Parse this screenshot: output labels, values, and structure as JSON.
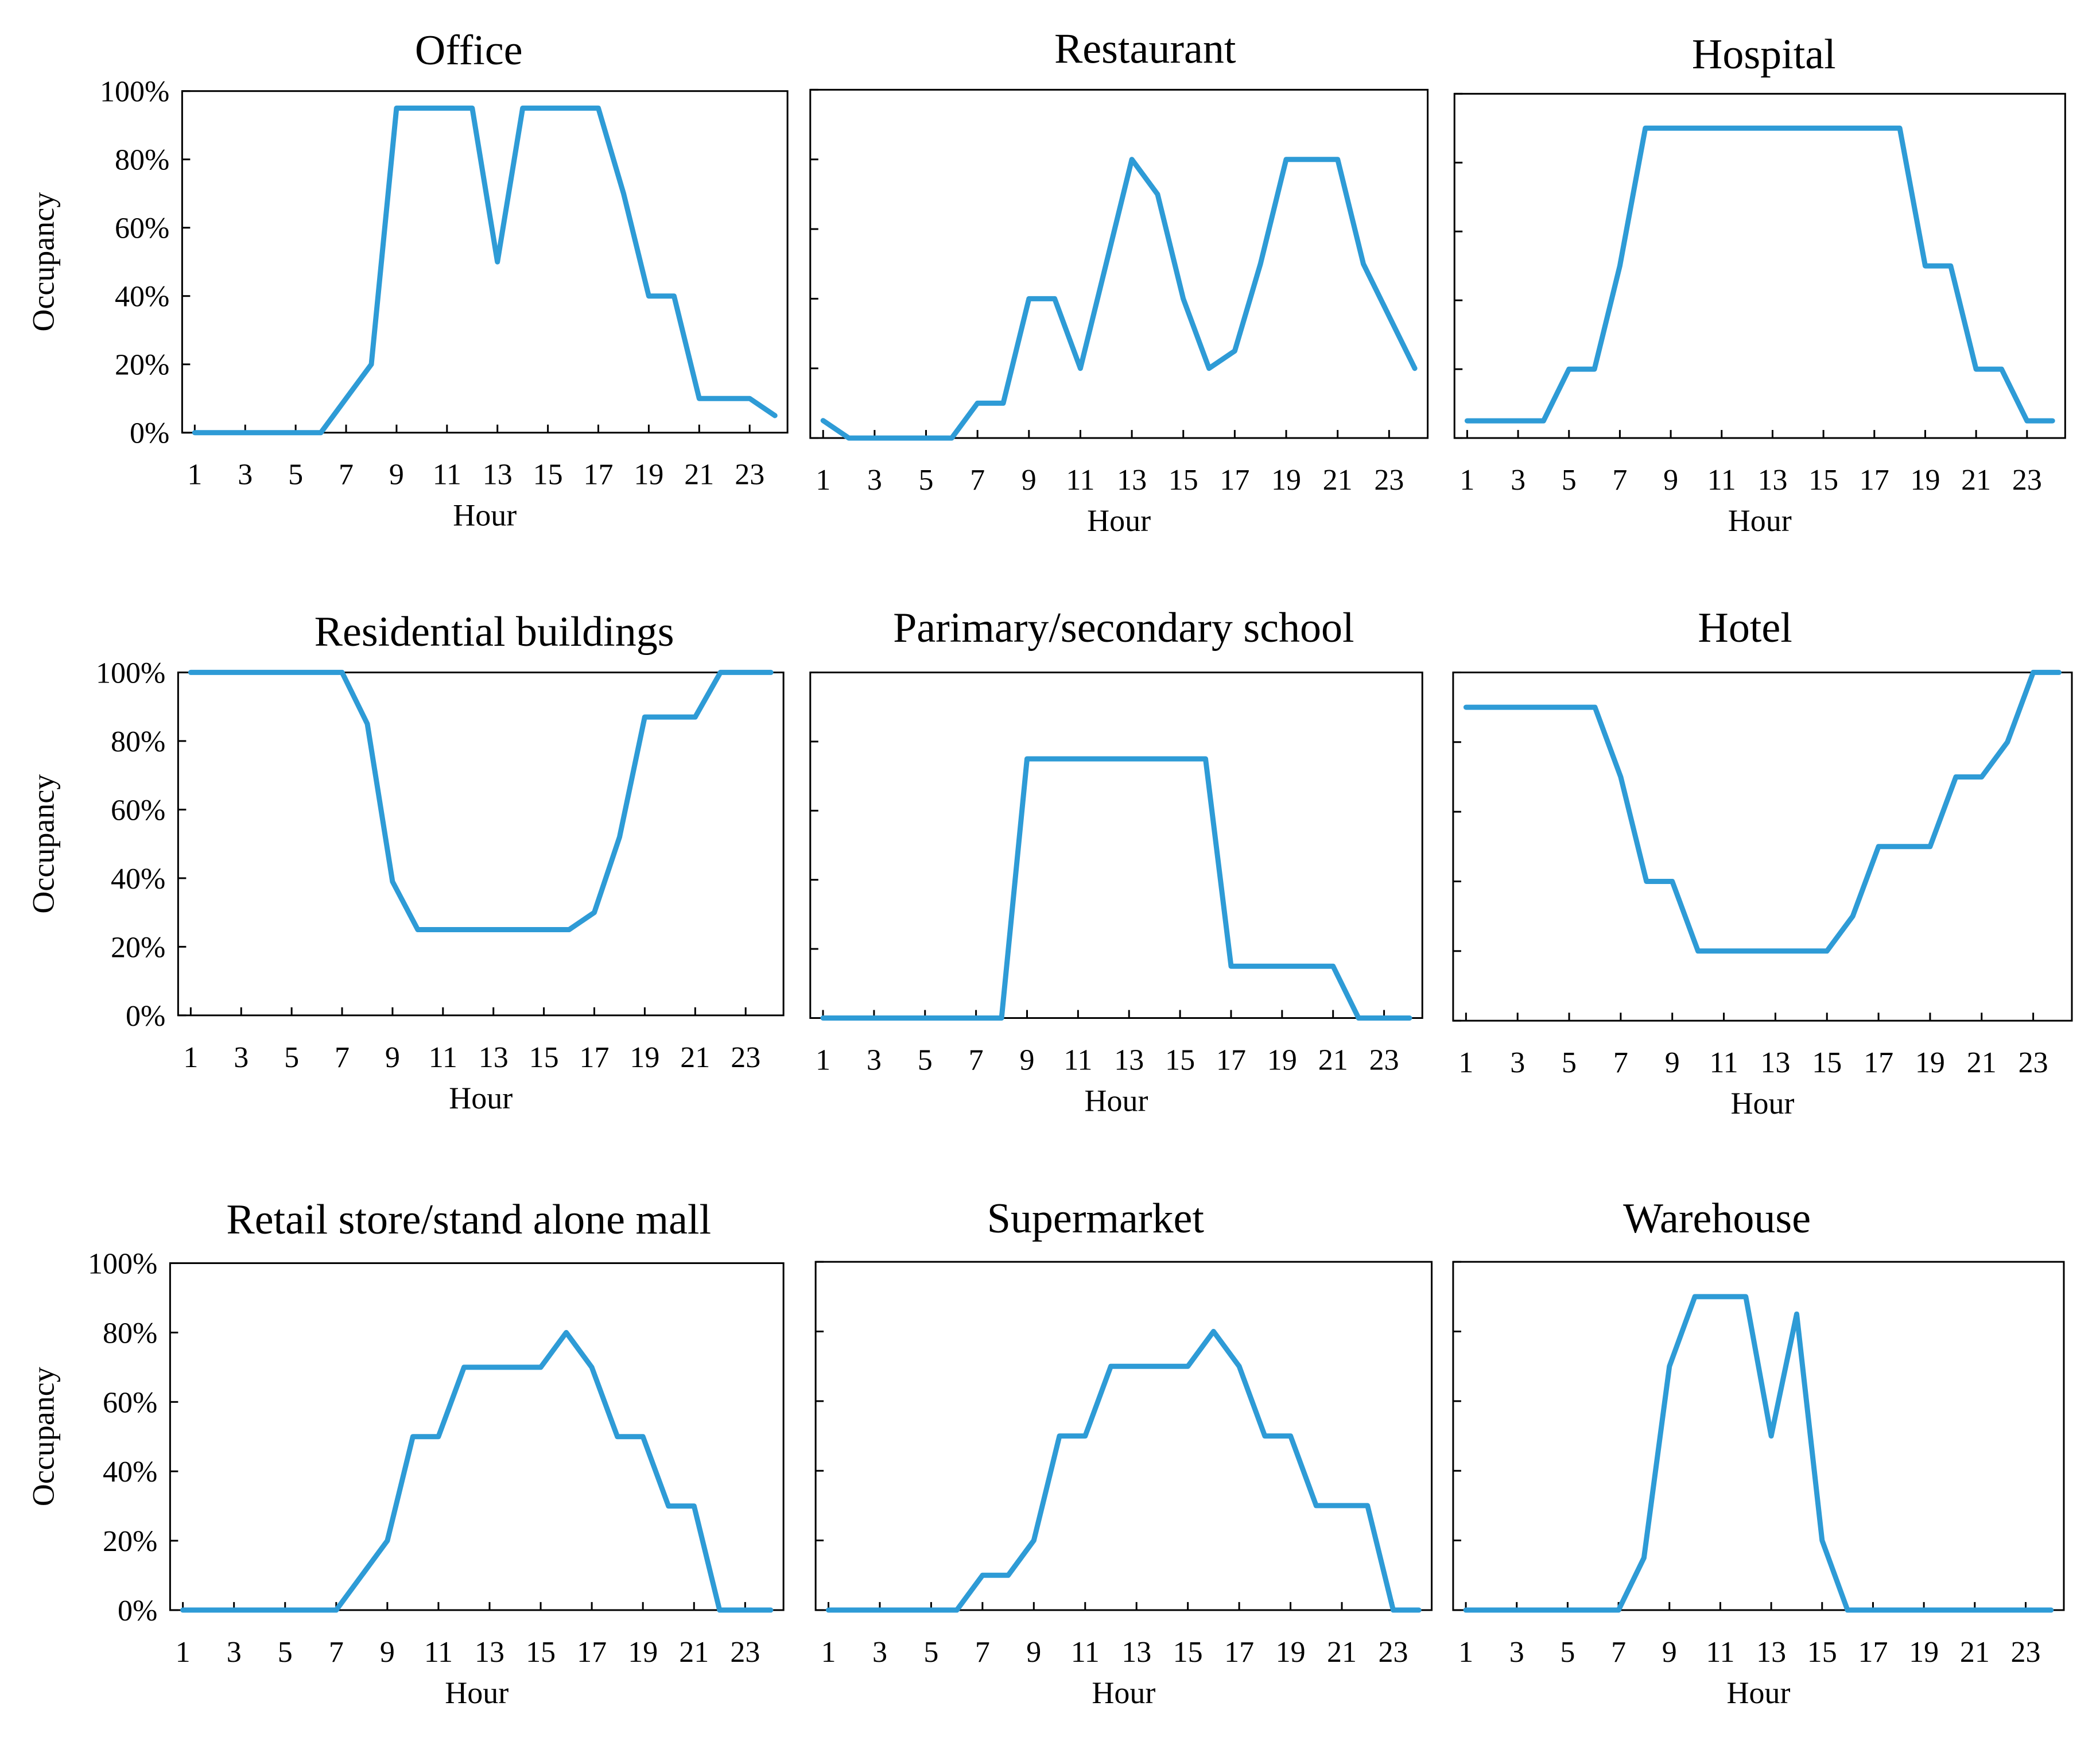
{
  "chart_data": [
    {
      "type": "line",
      "title": "Office",
      "xlabel": "Hour",
      "ylabel": "Occupancy",
      "xlim": [
        1,
        24
      ],
      "ylim": [
        0,
        100
      ],
      "x": [
        1,
        2,
        3,
        4,
        5,
        6,
        7,
        8,
        9,
        10,
        11,
        12,
        13,
        14,
        15,
        16,
        17,
        18,
        19,
        20,
        21,
        22,
        23,
        24
      ],
      "values": [
        0,
        0,
        0,
        0,
        0,
        0,
        10,
        20,
        95,
        95,
        95,
        95,
        50,
        95,
        95,
        95,
        95,
        70,
        40,
        40,
        10,
        10,
        10,
        5
      ]
    },
    {
      "type": "line",
      "title": "Restaurant",
      "xlabel": "Hour",
      "ylabel": "",
      "xlim": [
        1,
        24
      ],
      "ylim": [
        0,
        100
      ],
      "x": [
        1,
        2,
        3,
        4,
        5,
        6,
        7,
        8,
        9,
        10,
        11,
        12,
        13,
        14,
        15,
        16,
        17,
        18,
        19,
        20,
        21,
        22,
        23,
        24
      ],
      "values": [
        5,
        0,
        0,
        0,
        0,
        0,
        10,
        10,
        40,
        40,
        20,
        50,
        80,
        70,
        40,
        20,
        25,
        50,
        80,
        80,
        80,
        50,
        35,
        20
      ]
    },
    {
      "type": "line",
      "title": "Hospital",
      "xlabel": "Hour",
      "ylabel": "",
      "xlim": [
        1,
        24
      ],
      "ylim": [
        0,
        100
      ],
      "x": [
        1,
        2,
        3,
        4,
        5,
        6,
        7,
        8,
        9,
        10,
        11,
        12,
        13,
        14,
        15,
        16,
        17,
        18,
        19,
        20,
        21,
        22,
        23,
        24
      ],
      "values": [
        5,
        5,
        5,
        5,
        20,
        20,
        50,
        90,
        90,
        90,
        90,
        90,
        90,
        90,
        90,
        90,
        90,
        90,
        50,
        50,
        20,
        20,
        5,
        5
      ]
    },
    {
      "type": "line",
      "title": "Residential buildings",
      "xlabel": "Hour",
      "ylabel": "Occupancy",
      "xlim": [
        1,
        24
      ],
      "ylim": [
        0,
        100
      ],
      "x": [
        1,
        2,
        3,
        4,
        5,
        6,
        7,
        8,
        9,
        10,
        11,
        12,
        13,
        14,
        15,
        16,
        17,
        18,
        19,
        20,
        21,
        22,
        23,
        24
      ],
      "values": [
        100,
        100,
        100,
        100,
        100,
        100,
        100,
        85,
        39,
        25,
        25,
        25,
        25,
        25,
        25,
        25,
        30,
        52,
        87,
        87,
        87,
        100,
        100,
        100
      ]
    },
    {
      "type": "line",
      "title": "Parimary/secondary school",
      "xlabel": "Hour",
      "ylabel": "",
      "xlim": [
        1,
        24
      ],
      "ylim": [
        0,
        100
      ],
      "x": [
        1,
        2,
        3,
        4,
        5,
        6,
        7,
        8,
        9,
        10,
        11,
        12,
        13,
        14,
        15,
        16,
        17,
        18,
        19,
        20,
        21,
        22,
        23,
        24
      ],
      "values": [
        0,
        0,
        0,
        0,
        0,
        0,
        0,
        0,
        75,
        75,
        75,
        75,
        75,
        75,
        75,
        75,
        15,
        15,
        15,
        15,
        15,
        0,
        0,
        0
      ]
    },
    {
      "type": "line",
      "title": "Hotel",
      "xlabel": "Hour",
      "ylabel": "",
      "xlim": [
        1,
        24
      ],
      "ylim": [
        0,
        100
      ],
      "x": [
        1,
        2,
        3,
        4,
        5,
        6,
        7,
        8,
        9,
        10,
        11,
        12,
        13,
        14,
        15,
        16,
        17,
        18,
        19,
        20,
        21,
        22,
        23,
        24
      ],
      "values": [
        90,
        90,
        90,
        90,
        90,
        90,
        70,
        40,
        40,
        20,
        20,
        20,
        20,
        20,
        20,
        30,
        50,
        50,
        50,
        70,
        70,
        80,
        100,
        100
      ]
    },
    {
      "type": "line",
      "title": "Retail store/stand alone mall",
      "xlabel": "Hour",
      "ylabel": "Occupancy",
      "xlim": [
        1,
        24
      ],
      "ylim": [
        0,
        100
      ],
      "x": [
        1,
        2,
        3,
        4,
        5,
        6,
        7,
        8,
        9,
        10,
        11,
        12,
        13,
        14,
        15,
        16,
        17,
        18,
        19,
        20,
        21,
        22,
        23,
        24
      ],
      "values": [
        0,
        0,
        0,
        0,
        0,
        0,
        0,
        10,
        20,
        50,
        50,
        70,
        70,
        70,
        70,
        80,
        70,
        50,
        50,
        30,
        30,
        0,
        0,
        0
      ]
    },
    {
      "type": "line",
      "title": "Supermarket",
      "xlabel": "Hour",
      "ylabel": "",
      "xlim": [
        1,
        24
      ],
      "ylim": [
        0,
        100
      ],
      "x": [
        1,
        2,
        3,
        4,
        5,
        6,
        7,
        8,
        9,
        10,
        11,
        12,
        13,
        14,
        15,
        16,
        17,
        18,
        19,
        20,
        21,
        22,
        23,
        24
      ],
      "values": [
        0,
        0,
        0,
        0,
        0,
        0,
        10,
        10,
        20,
        50,
        50,
        70,
        70,
        70,
        70,
        80,
        70,
        50,
        50,
        30,
        30,
        30,
        0,
        0
      ]
    },
    {
      "type": "line",
      "title": "Warehouse",
      "xlabel": "Hour",
      "ylabel": "",
      "xlim": [
        1,
        24
      ],
      "ylim": [
        0,
        100
      ],
      "x": [
        1,
        2,
        3,
        4,
        5,
        6,
        7,
        8,
        9,
        10,
        11,
        12,
        13,
        14,
        15,
        16,
        17,
        18,
        19,
        20,
        21,
        22,
        23,
        24
      ],
      "values": [
        0,
        0,
        0,
        0,
        0,
        0,
        0,
        15,
        70,
        90,
        90,
        90,
        50,
        85,
        20,
        0,
        0,
        0,
        0,
        0,
        0,
        0,
        0,
        0
      ]
    }
  ],
  "axes": {
    "yticks": [
      0,
      20,
      40,
      60,
      80,
      100
    ],
    "ytick_labels": [
      "0%",
      "20%",
      "40%",
      "60%",
      "80%",
      "100%"
    ],
    "xticks": [
      1,
      3,
      5,
      7,
      9,
      11,
      13,
      15,
      17,
      19,
      21,
      23
    ],
    "xtick_labels": [
      "1",
      "3",
      "5",
      "7",
      "9",
      "11",
      "13",
      "15",
      "17",
      "19",
      "21",
      "23"
    ]
  },
  "style": {
    "line_color": "#2e9bd6",
    "axis_color": "#000000"
  }
}
